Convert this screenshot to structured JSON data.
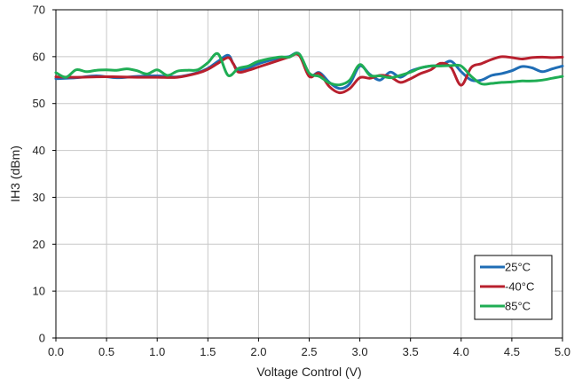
{
  "chart_data": {
    "type": "line",
    "xlabel": "Voltage Control (V)",
    "ylabel": "IH3 (dBm)",
    "xlim": [
      0.0,
      5.0
    ],
    "ylim": [
      0,
      70
    ],
    "x_ticks": [
      "0.0",
      "0.5",
      "1.0",
      "1.5",
      "2.0",
      "2.5",
      "3.0",
      "3.5",
      "4.0",
      "4.5",
      "5.0"
    ],
    "y_ticks": [
      "0",
      "10",
      "20",
      "30",
      "40",
      "50",
      "60",
      "70"
    ],
    "grid": true,
    "legend_position": "bottom-right",
    "series": [
      {
        "name": "25°C",
        "color": "#1f6db5",
        "points": [
          [
            0.0,
            55.3
          ],
          [
            0.2,
            55.5
          ],
          [
            0.4,
            55.9
          ],
          [
            0.6,
            55.5
          ],
          [
            0.8,
            55.8
          ],
          [
            1.0,
            55.9
          ],
          [
            1.2,
            55.7
          ],
          [
            1.4,
            56.6
          ],
          [
            1.5,
            57.5
          ],
          [
            1.6,
            59.0
          ],
          [
            1.7,
            60.3
          ],
          [
            1.75,
            58.5
          ],
          [
            1.8,
            57.2
          ],
          [
            1.9,
            57.6
          ],
          [
            2.0,
            58.5
          ],
          [
            2.2,
            59.7
          ],
          [
            2.3,
            60.0
          ],
          [
            2.4,
            60.6
          ],
          [
            2.5,
            56.0
          ],
          [
            2.6,
            56.6
          ],
          [
            2.7,
            54.5
          ],
          [
            2.8,
            53.2
          ],
          [
            2.9,
            54.2
          ],
          [
            3.0,
            58.0
          ],
          [
            3.1,
            56.2
          ],
          [
            3.2,
            55.0
          ],
          [
            3.3,
            56.7
          ],
          [
            3.4,
            55.6
          ],
          [
            3.5,
            56.9
          ],
          [
            3.6,
            57.6
          ],
          [
            3.7,
            58.0
          ],
          [
            3.8,
            58.2
          ],
          [
            3.9,
            59.0
          ],
          [
            4.0,
            56.8
          ],
          [
            4.1,
            55.0
          ],
          [
            4.2,
            55.0
          ],
          [
            4.3,
            56.0
          ],
          [
            4.4,
            56.4
          ],
          [
            4.5,
            57.0
          ],
          [
            4.6,
            57.9
          ],
          [
            4.7,
            57.6
          ],
          [
            4.8,
            56.8
          ],
          [
            4.9,
            57.4
          ],
          [
            5.0,
            58.0
          ]
        ]
      },
      {
        "name": "-40°C",
        "color": "#b8202e",
        "points": [
          [
            0.0,
            55.7
          ],
          [
            0.2,
            55.6
          ],
          [
            0.4,
            55.7
          ],
          [
            0.6,
            55.7
          ],
          [
            0.8,
            55.6
          ],
          [
            1.0,
            55.6
          ],
          [
            1.2,
            55.6
          ],
          [
            1.4,
            56.5
          ],
          [
            1.5,
            57.3
          ],
          [
            1.6,
            58.6
          ],
          [
            1.7,
            59.8
          ],
          [
            1.75,
            58.5
          ],
          [
            1.8,
            56.7
          ],
          [
            1.9,
            57.1
          ],
          [
            2.0,
            57.8
          ],
          [
            2.2,
            59.2
          ],
          [
            2.3,
            59.9
          ],
          [
            2.4,
            60.3
          ],
          [
            2.5,
            55.8
          ],
          [
            2.6,
            56.4
          ],
          [
            2.7,
            53.6
          ],
          [
            2.8,
            52.3
          ],
          [
            2.9,
            53.2
          ],
          [
            3.0,
            55.5
          ],
          [
            3.1,
            55.4
          ],
          [
            3.2,
            56.0
          ],
          [
            3.3,
            55.7
          ],
          [
            3.4,
            54.5
          ],
          [
            3.5,
            55.3
          ],
          [
            3.6,
            56.4
          ],
          [
            3.7,
            57.2
          ],
          [
            3.8,
            58.6
          ],
          [
            3.9,
            57.7
          ],
          [
            4.0,
            53.9
          ],
          [
            4.1,
            57.7
          ],
          [
            4.2,
            58.5
          ],
          [
            4.3,
            59.4
          ],
          [
            4.4,
            60.0
          ],
          [
            4.5,
            59.8
          ],
          [
            4.6,
            59.5
          ],
          [
            4.7,
            59.8
          ],
          [
            4.8,
            59.9
          ],
          [
            4.9,
            59.8
          ],
          [
            5.0,
            59.9
          ]
        ]
      },
      {
        "name": "85°C",
        "color": "#1fad54",
        "points": [
          [
            0.0,
            56.6
          ],
          [
            0.1,
            55.6
          ],
          [
            0.2,
            57.2
          ],
          [
            0.3,
            56.8
          ],
          [
            0.4,
            57.1
          ],
          [
            0.5,
            57.2
          ],
          [
            0.6,
            57.1
          ],
          [
            0.7,
            57.4
          ],
          [
            0.8,
            57.0
          ],
          [
            0.9,
            56.3
          ],
          [
            1.0,
            57.2
          ],
          [
            1.1,
            56.0
          ],
          [
            1.2,
            56.9
          ],
          [
            1.3,
            57.1
          ],
          [
            1.4,
            57.2
          ],
          [
            1.5,
            58.7
          ],
          [
            1.6,
            60.6
          ],
          [
            1.7,
            56.0
          ],
          [
            1.8,
            57.5
          ],
          [
            1.9,
            58.0
          ],
          [
            2.0,
            59.0
          ],
          [
            2.2,
            59.9
          ],
          [
            2.3,
            59.9
          ],
          [
            2.4,
            60.6
          ],
          [
            2.5,
            56.5
          ],
          [
            2.6,
            55.8
          ],
          [
            2.7,
            54.4
          ],
          [
            2.8,
            54.0
          ],
          [
            2.9,
            55.0
          ],
          [
            3.0,
            58.3
          ],
          [
            3.1,
            56.0
          ],
          [
            3.2,
            55.9
          ],
          [
            3.3,
            55.5
          ],
          [
            3.4,
            56.0
          ],
          [
            3.5,
            56.7
          ],
          [
            3.6,
            57.6
          ],
          [
            3.7,
            58.0
          ],
          [
            3.8,
            58.0
          ],
          [
            3.9,
            58.1
          ],
          [
            4.0,
            58.0
          ],
          [
            4.1,
            55.8
          ],
          [
            4.2,
            54.2
          ],
          [
            4.3,
            54.3
          ],
          [
            4.4,
            54.5
          ],
          [
            4.5,
            54.6
          ],
          [
            4.6,
            54.8
          ],
          [
            4.7,
            54.8
          ],
          [
            4.8,
            55.0
          ],
          [
            4.9,
            55.4
          ],
          [
            5.0,
            55.8
          ]
        ]
      }
    ]
  }
}
